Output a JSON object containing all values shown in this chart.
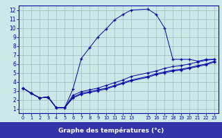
{
  "xlabel": "Graphe des températures (°c)",
  "background_color": "#cce8e8",
  "grid_color": "#99bbbb",
  "line_color": "#0000aa",
  "axis_bar_color": "#3333aa",
  "xlim": [
    -0.5,
    23.5
  ],
  "ylim": [
    0.5,
    12.5
  ],
  "xticks": [
    0,
    1,
    2,
    3,
    4,
    5,
    6,
    7,
    8,
    9,
    10,
    11,
    12,
    13,
    15,
    16,
    17,
    18,
    19,
    20,
    21,
    22,
    23
  ],
  "yticks": [
    1,
    2,
    3,
    4,
    5,
    6,
    7,
    8,
    9,
    10,
    11,
    12
  ],
  "series": [
    {
      "x": [
        0,
        1,
        2,
        3,
        4,
        5,
        6,
        7,
        8,
        9,
        10,
        11,
        12,
        13,
        15,
        16,
        17,
        18,
        19,
        20,
        21,
        22,
        23
      ],
      "y": [
        3.3,
        2.7,
        2.2,
        2.3,
        1.1,
        1.1,
        3.2,
        6.6,
        7.8,
        9.0,
        9.9,
        10.9,
        11.5,
        12.0,
        12.1,
        11.5,
        10.0,
        6.5,
        6.5,
        6.5,
        6.3,
        6.5,
        6.5
      ]
    },
    {
      "x": [
        0,
        1,
        2,
        3,
        4,
        5,
        6,
        7,
        8,
        9,
        10,
        11,
        12,
        13,
        15,
        16,
        17,
        18,
        19,
        20,
        21,
        22,
        23
      ],
      "y": [
        3.3,
        2.7,
        2.2,
        2.3,
        1.1,
        1.1,
        2.5,
        2.9,
        3.1,
        3.3,
        3.6,
        3.9,
        4.2,
        4.6,
        5.0,
        5.2,
        5.5,
        5.7,
        5.8,
        6.0,
        6.2,
        6.4,
        6.5
      ]
    },
    {
      "x": [
        0,
        1,
        2,
        3,
        4,
        5,
        6,
        7,
        8,
        9,
        10,
        11,
        12,
        13,
        15,
        16,
        17,
        18,
        19,
        20,
        21,
        22,
        23
      ],
      "y": [
        3.3,
        2.7,
        2.2,
        2.3,
        1.1,
        1.1,
        2.3,
        2.7,
        2.9,
        3.1,
        3.3,
        3.6,
        3.9,
        4.2,
        4.6,
        4.9,
        5.1,
        5.3,
        5.4,
        5.6,
        5.8,
        6.0,
        6.3
      ]
    },
    {
      "x": [
        0,
        1,
        2,
        3,
        4,
        5,
        6,
        7,
        8,
        9,
        10,
        11,
        12,
        13,
        15,
        16,
        17,
        18,
        19,
        20,
        21,
        22,
        23
      ],
      "y": [
        3.3,
        2.7,
        2.2,
        2.3,
        1.1,
        1.1,
        2.2,
        2.6,
        2.8,
        3.0,
        3.2,
        3.5,
        3.8,
        4.1,
        4.5,
        4.8,
        5.0,
        5.2,
        5.3,
        5.5,
        5.7,
        5.9,
        6.2
      ]
    }
  ]
}
